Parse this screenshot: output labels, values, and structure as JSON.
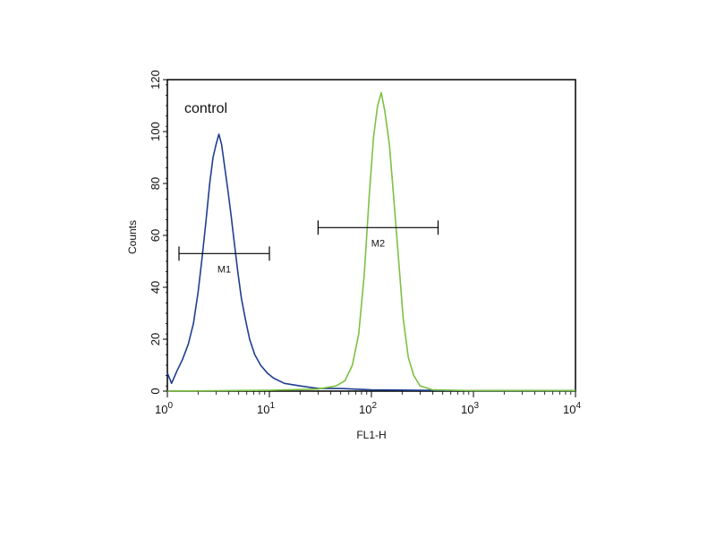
{
  "chart_data": {
    "type": "line",
    "title": "",
    "xlabel": "FL1-H",
    "ylabel": "Counts",
    "x_scale": "log",
    "xlim": [
      1,
      10000
    ],
    "ylim": [
      0,
      120
    ],
    "grid": false,
    "x_ticks": [
      {
        "value": 1,
        "base": "10",
        "exp": "0"
      },
      {
        "value": 10,
        "base": "10",
        "exp": "1"
      },
      {
        "value": 100,
        "base": "10",
        "exp": "2"
      },
      {
        "value": 1000,
        "base": "10",
        "exp": "3"
      },
      {
        "value": 10000,
        "base": "10",
        "exp": "4"
      }
    ],
    "y_ticks": [
      0,
      20,
      40,
      60,
      80,
      100,
      120
    ],
    "annotation": "control",
    "series": [
      {
        "color": "#1f3f8f",
        "points": [
          [
            1.0,
            7
          ],
          [
            1.1,
            3
          ],
          [
            1.25,
            8
          ],
          [
            1.4,
            12
          ],
          [
            1.6,
            18
          ],
          [
            1.8,
            26
          ],
          [
            2.0,
            38
          ],
          [
            2.2,
            52
          ],
          [
            2.4,
            66
          ],
          [
            2.6,
            80
          ],
          [
            2.8,
            90
          ],
          [
            3.0,
            95
          ],
          [
            3.2,
            99
          ],
          [
            3.4,
            95
          ],
          [
            3.6,
            88
          ],
          [
            3.9,
            78
          ],
          [
            4.2,
            68
          ],
          [
            4.5,
            58
          ],
          [
            4.9,
            46
          ],
          [
            5.3,
            36
          ],
          [
            5.8,
            28
          ],
          [
            6.4,
            20
          ],
          [
            7.2,
            14
          ],
          [
            8.2,
            10
          ],
          [
            9.5,
            7
          ],
          [
            11,
            5
          ],
          [
            14,
            3
          ],
          [
            20,
            2
          ],
          [
            30,
            1
          ],
          [
            50,
            1
          ],
          [
            100,
            0.5
          ],
          [
            300,
            0.3
          ],
          [
            1000,
            0.2
          ],
          [
            10000,
            0.2
          ]
        ]
      },
      {
        "color": "#7dc142",
        "points": [
          [
            1,
            0
          ],
          [
            10,
            0.3
          ],
          [
            30,
            0.8
          ],
          [
            45,
            2
          ],
          [
            55,
            4
          ],
          [
            65,
            10
          ],
          [
            75,
            22
          ],
          [
            85,
            45
          ],
          [
            95,
            75
          ],
          [
            105,
            98
          ],
          [
            115,
            110
          ],
          [
            125,
            115
          ],
          [
            135,
            108
          ],
          [
            150,
            95
          ],
          [
            165,
            75
          ],
          [
            185,
            50
          ],
          [
            205,
            28
          ],
          [
            230,
            13
          ],
          [
            260,
            6
          ],
          [
            300,
            2
          ],
          [
            400,
            0.5
          ],
          [
            1000,
            0.2
          ],
          [
            10000,
            0.2
          ]
        ]
      }
    ],
    "markers": [
      {
        "label": "M1",
        "x_start": 1.3,
        "x_end": 10,
        "y": 53
      },
      {
        "label": "M2",
        "x_start": 30,
        "x_end": 450,
        "y": 63
      }
    ]
  }
}
